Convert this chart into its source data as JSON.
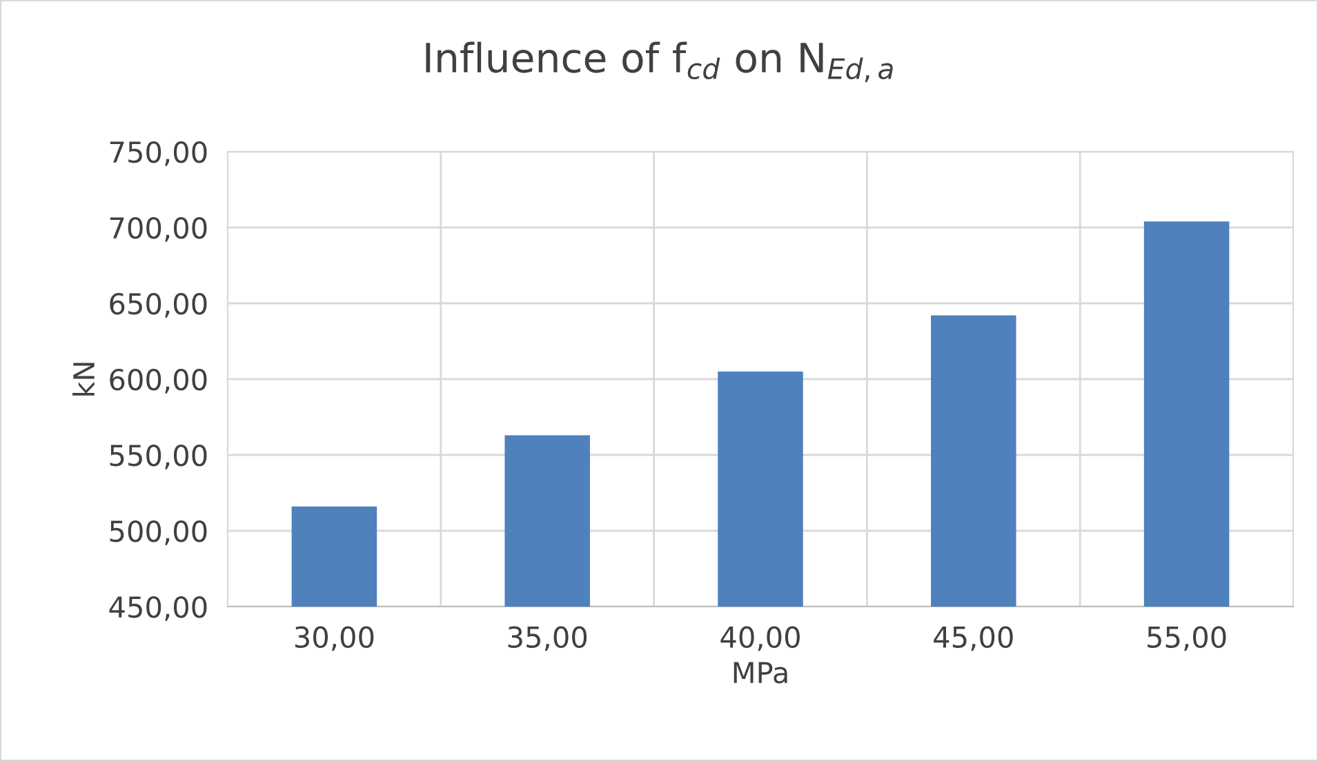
{
  "chart_data": {
    "type": "bar",
    "title": "Influence of f$_{cd}$ on N$_{Ed,a}$",
    "xlabel": "MPa",
    "ylabel": "kN",
    "categories": [
      "30,00",
      "35,00",
      "40,00",
      "45,00",
      "55,00"
    ],
    "values": [
      516,
      563,
      605,
      642,
      704
    ],
    "color": "#4f81bd",
    "ylim": [
      450,
      750
    ],
    "yticks": [
      {
        "value": 450,
        "label": "450,00"
      },
      {
        "value": 500,
        "label": "500,00"
      },
      {
        "value": 550,
        "label": "550,00"
      },
      {
        "value": 600,
        "label": "600,00"
      },
      {
        "value": 650,
        "label": "650,00"
      },
      {
        "value": 700,
        "label": "700,00"
      },
      {
        "value": 750,
        "label": "750,00"
      }
    ],
    "grid": true
  }
}
